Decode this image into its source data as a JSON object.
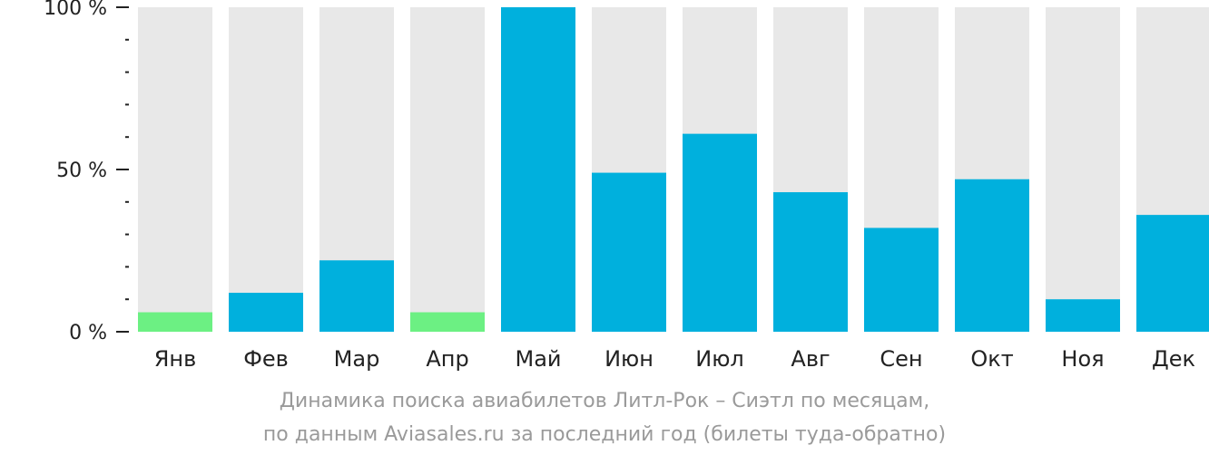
{
  "chart_data": {
    "type": "bar",
    "categories": [
      "Янв",
      "Фев",
      "Мар",
      "Апр",
      "Май",
      "Июн",
      "Июл",
      "Авг",
      "Сен",
      "Окт",
      "Ноя",
      "Дек"
    ],
    "values": [
      6,
      12,
      22,
      6,
      100,
      49,
      61,
      43,
      32,
      47,
      10,
      36
    ],
    "highlight": [
      true,
      false,
      false,
      true,
      false,
      false,
      false,
      false,
      false,
      false,
      false,
      false
    ],
    "ylim": [
      0,
      100
    ],
    "yticks": [
      {
        "value": 0,
        "label": "0 %"
      },
      {
        "value": 50,
        "label": "50 %"
      },
      {
        "value": 100,
        "label": "100 %"
      }
    ],
    "minor_tick_step": 10,
    "grid": false,
    "colors": {
      "bar": "#00b0dd",
      "highlight": "#6cf083",
      "track": "#e8e8e8",
      "axis": "#222222"
    }
  },
  "caption": {
    "line1": "Динамика поиска авиабилетов Литл-Рок – Сиэтл по месяцам,",
    "line2": "по данным Aviasales.ru за последний год (билеты туда-обратно)"
  }
}
